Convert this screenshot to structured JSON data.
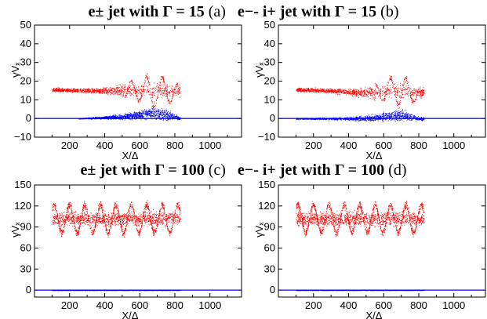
{
  "row_titles": [
    {
      "left_bold": "e± jet with Γ = 15",
      "left_tag": "(a)",
      "right_bold": "e−- i+ jet with Γ = 15",
      "right_tag": "(b)"
    },
    {
      "left_bold": "e± jet with Γ = 100",
      "left_tag": "(c)",
      "right_bold": "e−- i+ jet with Γ = 100",
      "right_tag": "(d)"
    }
  ],
  "colors": {
    "electrons": "#ff0000",
    "positrons_or_ions": "#0000ff",
    "zero_line": "#000000"
  },
  "chart_data": [
    {
      "panel": "a",
      "type": "scatter",
      "xlabel": "X/Δ",
      "ylabel": "γVₓ",
      "xlim": [
        0,
        1180
      ],
      "ylim": [
        -10,
        50
      ],
      "xticks": [
        200,
        400,
        600,
        800,
        1000
      ],
      "yticks": [
        -10,
        0,
        10,
        20,
        30,
        40,
        50
      ],
      "series": [
        {
          "color": "red",
          "x_extent": [
            100,
            830
          ],
          "envelope": {
            "x": [
              100,
              300,
              450,
              550,
              600,
              650,
              700,
              750,
              800,
              830
            ],
            "mean": [
              15.5,
              15,
              15,
              15,
              15,
              15,
              15,
              15,
              14,
              15
            ],
            "half_width": [
              1.5,
              1.5,
              3,
              6,
              7,
              10,
              10,
              8,
              6,
              4
            ]
          }
        },
        {
          "color": "blue",
          "x_extent": [
            250,
            830
          ],
          "envelope": {
            "x": [
              250,
              400,
              500,
              600,
              650,
              700,
              750,
              800,
              830
            ],
            "mean": [
              0,
              0.5,
              1,
              2,
              3,
              3,
              2,
              1,
              0
            ],
            "half_width": [
              0.3,
              1,
              2,
              3,
              4,
              5,
              4,
              2,
              1
            ]
          }
        }
      ]
    },
    {
      "panel": "b",
      "type": "scatter",
      "xlabel": "X/Δ",
      "ylabel": "γVₓ",
      "xlim": [
        0,
        1180
      ],
      "ylim": [
        -10,
        50
      ],
      "xticks": [
        200,
        400,
        600,
        800,
        1000
      ],
      "yticks": [
        -10,
        0,
        10,
        20,
        30,
        40,
        50
      ],
      "series": [
        {
          "color": "red",
          "x_extent": [
            100,
            830
          ],
          "envelope": {
            "x": [
              100,
              300,
              450,
              550,
              600,
              650,
              700,
              750,
              800,
              830
            ],
            "mean": [
              15.5,
              15,
              14,
              14,
              15,
              15,
              15,
              14,
              14,
              14
            ],
            "half_width": [
              1.5,
              1.5,
              3,
              5,
              7,
              9,
              10,
              7,
              5,
              3
            ]
          }
        },
        {
          "color": "blue",
          "x_extent": [
            100,
            830
          ],
          "envelope": {
            "x": [
              100,
              300,
              450,
              550,
              600,
              650,
              700,
              750,
              800,
              830
            ],
            "mean": [
              0,
              0,
              0,
              0.5,
              1,
              1.5,
              1.5,
              1,
              0,
              0
            ],
            "half_width": [
              0.5,
              0.8,
              1.5,
              2.5,
              3.5,
              4,
              4,
              3,
              1.5,
              1
            ]
          }
        }
      ]
    },
    {
      "panel": "c",
      "type": "scatter",
      "xlabel": "X/Δ",
      "ylabel": "γVₓ",
      "xlim": [
        0,
        1180
      ],
      "ylim": [
        -10,
        150
      ],
      "xticks": [
        200,
        400,
        600,
        800,
        1000
      ],
      "yticks": [
        0,
        30,
        60,
        90,
        120,
        150
      ],
      "series": [
        {
          "color": "red",
          "x_extent": [
            100,
            830
          ],
          "envelope": {
            "x": [
              100,
              830
            ],
            "mean": [
              102,
              102
            ],
            "half_width": [
              25,
              25
            ]
          }
        },
        {
          "color": "blue",
          "x_extent": [
            100,
            830
          ],
          "envelope": {
            "x": [
              100,
              830
            ],
            "mean": [
              0,
              0
            ],
            "half_width": [
              0.5,
              0.5
            ]
          }
        }
      ]
    },
    {
      "panel": "d",
      "type": "scatter",
      "xlabel": "X/Δ",
      "ylabel": "γVₓ",
      "xlim": [
        0,
        1180
      ],
      "ylim": [
        -10,
        150
      ],
      "xticks": [
        200,
        400,
        600,
        800,
        1000
      ],
      "yticks": [
        0,
        30,
        60,
        90,
        120,
        150
      ],
      "series": [
        {
          "color": "red",
          "x_extent": [
            100,
            830
          ],
          "envelope": {
            "x": [
              100,
              830
            ],
            "mean": [
              102,
              102
            ],
            "half_width": [
              25,
              25
            ]
          }
        },
        {
          "color": "blue",
          "x_extent": [
            100,
            830
          ],
          "envelope": {
            "x": [
              100,
              830
            ],
            "mean": [
              0,
              0
            ],
            "half_width": [
              0.5,
              0.5
            ]
          }
        }
      ]
    }
  ]
}
